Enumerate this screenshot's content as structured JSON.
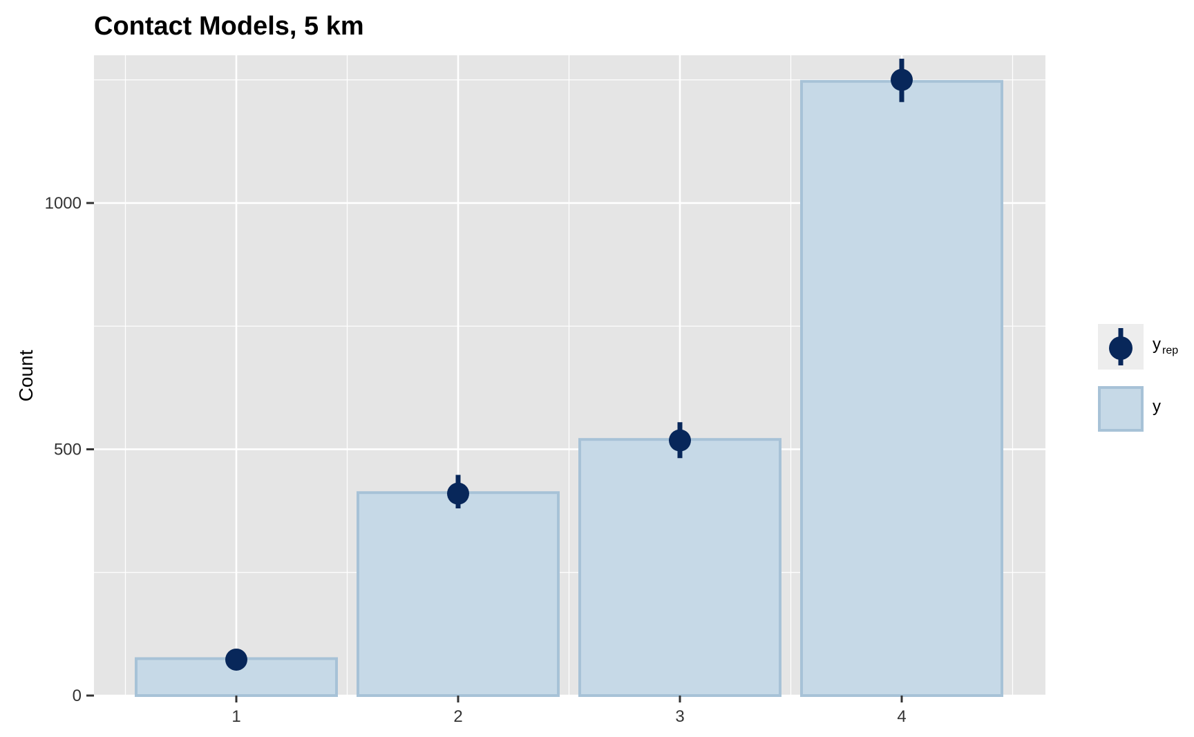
{
  "chart_data": {
    "type": "bar",
    "title": "Contact Models, 5 km",
    "xlabel": "",
    "ylabel": "Count",
    "categories": [
      "1",
      "2",
      "3",
      "4"
    ],
    "x_tick_labels": [
      "1",
      "2",
      "3",
      "4"
    ],
    "y_ticks": [
      0,
      500,
      1000
    ],
    "y_tick_labels": [
      "0",
      "500",
      "1000"
    ],
    "ylim": [
      0,
      1300
    ],
    "grid": true,
    "legend_position": "right",
    "series": [
      {
        "name": "y",
        "mark": "bar",
        "values": [
          75,
          412,
          520,
          1247
        ]
      },
      {
        "name": "y_rep",
        "mark": "point-range",
        "values": [
          73,
          410,
          518,
          1250
        ],
        "lower": [
          65,
          380,
          482,
          1205
        ],
        "upper": [
          82,
          448,
          555,
          1293
        ]
      }
    ],
    "legend": [
      {
        "label": "y",
        "subscript": "rep",
        "symbol": "point-range"
      },
      {
        "label": "y",
        "subscript": "",
        "symbol": "bar"
      }
    ],
    "colors": {
      "panel": "#e5e5e5",
      "grid": "#ffffff",
      "bar_fill": "#c6d9e7",
      "bar_stroke": "#a7c2d7",
      "point": "#08275a",
      "legend_key_bg": "#ededed"
    }
  }
}
